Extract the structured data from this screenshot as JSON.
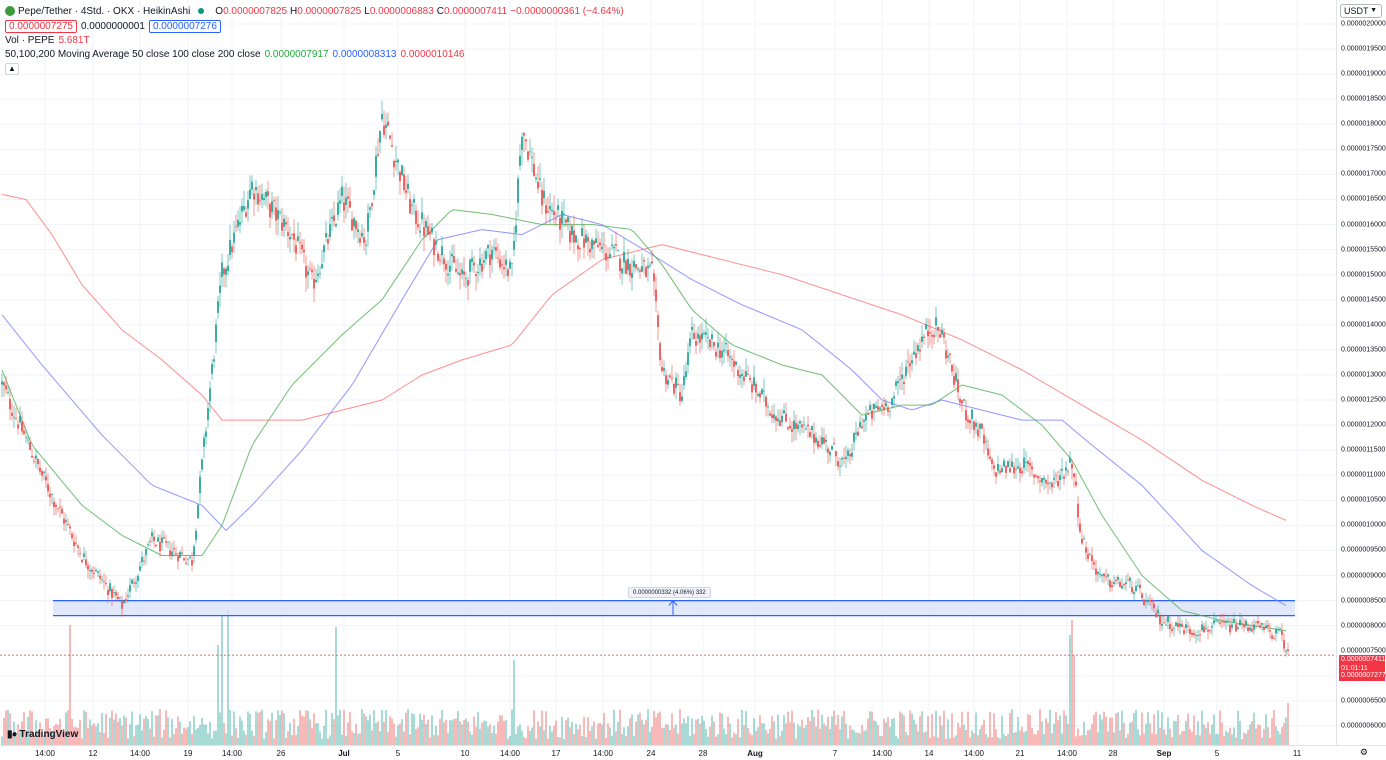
{
  "legend": {
    "symbol_title": "Pepe/Tether · 4Std. · OKX · HeikinAshi",
    "open_label": "O",
    "open_value": "0.0000007825",
    "high_label": "H",
    "high_value": "0.0000007825",
    "low_label": "L",
    "low_value": "0.0000006883",
    "close_label": "C",
    "close_value": "0.0000007411",
    "change_value": "−0.0000000361 (−4.64%)",
    "sell_price": "0.0000007275",
    "spread": "0.0000000001",
    "buy_price": "0.0000007276",
    "vol_label": "Vol · PEPE",
    "vol_value": "5.681T",
    "ma_label": "50,100,200 Moving Average 50 close 100 close 200 close",
    "ma50_value": "0.0000007917",
    "ma100_value": "0.0000008313",
    "ma200_value": "0.0000010146",
    "collapse_icon": "chevron-up-icon"
  },
  "price_axis": {
    "currency": "USDT",
    "ticks": [
      "0.0000020000",
      "0.0000019500",
      "0.0000019000",
      "0.0000018500",
      "0.0000018000",
      "0.0000017500",
      "0.0000017000",
      "0.0000016500",
      "0.0000016000",
      "0.0000015500",
      "0.0000015000",
      "0.0000014500",
      "0.0000014000",
      "0.0000013500",
      "0.0000013000",
      "0.0000012500",
      "0.0000012000",
      "0.0000011500",
      "0.0000011000",
      "0.0000010500",
      "0.0000010000",
      "0.0000009500",
      "0.0000009000",
      "0.0000008500",
      "0.0000008000",
      "0.0000007500",
      "0.0000007000",
      "0.0000006500",
      "0.0000006000"
    ],
    "current_price_label": "0.0000007411",
    "countdown_label": "01:01:11",
    "bid_label": "0.0000007277"
  },
  "time_axis": {
    "ticks": [
      {
        "label": "14:00",
        "bold": false
      },
      {
        "label": "12",
        "bold": false
      },
      {
        "label": "14:00",
        "bold": false
      },
      {
        "label": "19",
        "bold": false
      },
      {
        "label": "14:00",
        "bold": false
      },
      {
        "label": "26",
        "bold": false
      },
      {
        "label": "Jul",
        "bold": true
      },
      {
        "label": "5",
        "bold": false
      },
      {
        "label": "10",
        "bold": false
      },
      {
        "label": "14:00",
        "bold": false
      },
      {
        "label": "17",
        "bold": false
      },
      {
        "label": "14:00",
        "bold": false
      },
      {
        "label": "24",
        "bold": false
      },
      {
        "label": "28",
        "bold": false
      },
      {
        "label": "Aug",
        "bold": true
      },
      {
        "label": "7",
        "bold": false
      },
      {
        "label": "14:00",
        "bold": false
      },
      {
        "label": "14",
        "bold": false
      },
      {
        "label": "14:00",
        "bold": false
      },
      {
        "label": "21",
        "bold": false
      },
      {
        "label": "14:00",
        "bold": false
      },
      {
        "label": "28",
        "bold": false
      },
      {
        "label": "Sep",
        "bold": true
      },
      {
        "label": "5",
        "bold": false
      },
      {
        "label": "11",
        "bold": false
      }
    ],
    "settings_icon": "gear-icon"
  },
  "measure": {
    "label": "0.0000000332 (4.06%) 332",
    "top_price": 8.5e-07,
    "bottom_price": 8.2e-07
  },
  "branding": {
    "logo_text": "TradingView"
  },
  "colors": {
    "up": "#26a69a",
    "down": "#ef5350",
    "ma50": "#4caf50",
    "ma100": "#7b7bff",
    "ma200": "#ff7070",
    "measure_fill": "#dbe2fb",
    "measure_line": "#2962ff"
  },
  "chart_data": {
    "type": "candlestick",
    "title": "Pepe/Tether · 4Std. · OKX · HeikinAshi",
    "ylim": [
      5.8e-07,
      2.03e-06
    ],
    "price_anchors": [
      [
        0,
        1.28e-06
      ],
      [
        20,
        1.1e-06
      ],
      [
        40,
        9.4e-07
      ],
      [
        60,
        8.4e-07
      ],
      [
        75,
        9.7e-07
      ],
      [
        95,
        9.3e-07
      ],
      [
        110,
        1.5e-06
      ],
      [
        125,
        1.68e-06
      ],
      [
        145,
        1.58e-06
      ],
      [
        155,
        1.48e-06
      ],
      [
        170,
        1.65e-06
      ],
      [
        182,
        1.57e-06
      ],
      [
        190,
        1.82e-06
      ],
      [
        205,
        1.63e-06
      ],
      [
        215,
        1.57e-06
      ],
      [
        230,
        1.49e-06
      ],
      [
        245,
        1.55e-06
      ],
      [
        255,
        1.5e-06
      ],
      [
        260,
        1.8e-06
      ],
      [
        270,
        1.65e-06
      ],
      [
        285,
        1.58e-06
      ],
      [
        300,
        1.55e-06
      ],
      [
        315,
        1.52e-06
      ],
      [
        325,
        1.5e-06
      ],
      [
        330,
        1.31e-06
      ],
      [
        340,
        1.26e-06
      ],
      [
        345,
        1.38e-06
      ],
      [
        360,
        1.35e-06
      ],
      [
        375,
        1.28e-06
      ],
      [
        385,
        1.23e-06
      ],
      [
        395,
        1.2e-06
      ],
      [
        410,
        1.17e-06
      ],
      [
        422,
        1.12e-06
      ],
      [
        430,
        1.21e-06
      ],
      [
        445,
        1.25e-06
      ],
      [
        455,
        1.34e-06
      ],
      [
        465,
        1.4e-06
      ],
      [
        470,
        1.38e-06
      ],
      [
        480,
        1.24e-06
      ],
      [
        490,
        1.18e-06
      ],
      [
        495,
        1.11e-06
      ],
      [
        510,
        1.12e-06
      ],
      [
        525,
        1.08e-06
      ],
      [
        535,
        1.13e-06
      ],
      [
        540,
        9.7e-07
      ],
      [
        550,
        8.9e-07
      ],
      [
        565,
        8.8e-07
      ],
      [
        580,
        8.1e-07
      ],
      [
        595,
        7.9e-07
      ],
      [
        610,
        8e-07
      ],
      [
        625,
        8e-07
      ],
      [
        640,
        7.8e-07
      ],
      [
        643,
        7.4e-07
      ]
    ],
    "ma50_anchors": [
      [
        0,
        1.31e-06
      ],
      [
        15,
        1.16e-06
      ],
      [
        40,
        1.04e-06
      ],
      [
        60,
        9.8e-07
      ],
      [
        80,
        9.4e-07
      ],
      [
        100,
        9.4e-07
      ],
      [
        110,
        1e-06
      ],
      [
        125,
        1.16e-06
      ],
      [
        145,
        1.28e-06
      ],
      [
        170,
        1.38e-06
      ],
      [
        190,
        1.45e-06
      ],
      [
        210,
        1.57e-06
      ],
      [
        225,
        1.63e-06
      ],
      [
        245,
        1.62e-06
      ],
      [
        270,
        1.6e-06
      ],
      [
        295,
        1.6e-06
      ],
      [
        315,
        1.59e-06
      ],
      [
        330,
        1.52e-06
      ],
      [
        345,
        1.43e-06
      ],
      [
        365,
        1.36e-06
      ],
      [
        390,
        1.32e-06
      ],
      [
        410,
        1.3e-06
      ],
      [
        430,
        1.22e-06
      ],
      [
        450,
        1.24e-06
      ],
      [
        465,
        1.24e-06
      ],
      [
        480,
        1.28e-06
      ],
      [
        500,
        1.26e-06
      ],
      [
        520,
        1.2e-06
      ],
      [
        535,
        1.13e-06
      ],
      [
        550,
        1.02e-06
      ],
      [
        570,
        9e-07
      ],
      [
        590,
        8.3e-07
      ],
      [
        610,
        8.1e-07
      ],
      [
        625,
        8e-07
      ],
      [
        642,
        7.9e-07
      ]
    ],
    "ma100_anchors": [
      [
        0,
        1.42e-06
      ],
      [
        20,
        1.32e-06
      ],
      [
        50,
        1.18e-06
      ],
      [
        75,
        1.08e-06
      ],
      [
        100,
        1.04e-06
      ],
      [
        112,
        9.9e-07
      ],
      [
        125,
        1.04e-06
      ],
      [
        150,
        1.15e-06
      ],
      [
        175,
        1.28e-06
      ],
      [
        200,
        1.45e-06
      ],
      [
        218,
        1.57e-06
      ],
      [
        240,
        1.59e-06
      ],
      [
        260,
        1.58e-06
      ],
      [
        280,
        1.62e-06
      ],
      [
        300,
        1.6e-06
      ],
      [
        325,
        1.54e-06
      ],
      [
        345,
        1.49e-06
      ],
      [
        370,
        1.44e-06
      ],
      [
        400,
        1.39e-06
      ],
      [
        425,
        1.31e-06
      ],
      [
        440,
        1.25e-06
      ],
      [
        455,
        1.23e-06
      ],
      [
        470,
        1.25e-06
      ],
      [
        490,
        1.23e-06
      ],
      [
        510,
        1.21e-06
      ],
      [
        530,
        1.21e-06
      ],
      [
        545,
        1.16e-06
      ],
      [
        570,
        1.08e-06
      ],
      [
        600,
        9.5e-07
      ],
      [
        625,
        8.8e-07
      ],
      [
        642,
        8.4e-07
      ]
    ],
    "ma200_anchors": [
      [
        0,
        1.66e-06
      ],
      [
        12,
        1.65e-06
      ],
      [
        25,
        1.58e-06
      ],
      [
        40,
        1.48e-06
      ],
      [
        60,
        1.39e-06
      ],
      [
        80,
        1.33e-06
      ],
      [
        100,
        1.26e-06
      ],
      [
        110,
        1.21e-06
      ],
      [
        130,
        1.21e-06
      ],
      [
        150,
        1.21e-06
      ],
      [
        170,
        1.23e-06
      ],
      [
        190,
        1.25e-06
      ],
      [
        210,
        1.3e-06
      ],
      [
        230,
        1.33e-06
      ],
      [
        255,
        1.36e-06
      ],
      [
        275,
        1.46e-06
      ],
      [
        300,
        1.53e-06
      ],
      [
        330,
        1.56e-06
      ],
      [
        360,
        1.53e-06
      ],
      [
        390,
        1.5e-06
      ],
      [
        420,
        1.46e-06
      ],
      [
        450,
        1.42e-06
      ],
      [
        480,
        1.37e-06
      ],
      [
        510,
        1.31e-06
      ],
      [
        540,
        1.24e-06
      ],
      [
        570,
        1.17e-06
      ],
      [
        600,
        1.09e-06
      ],
      [
        625,
        1.04e-06
      ],
      [
        642,
        1.01e-06
      ]
    ]
  }
}
